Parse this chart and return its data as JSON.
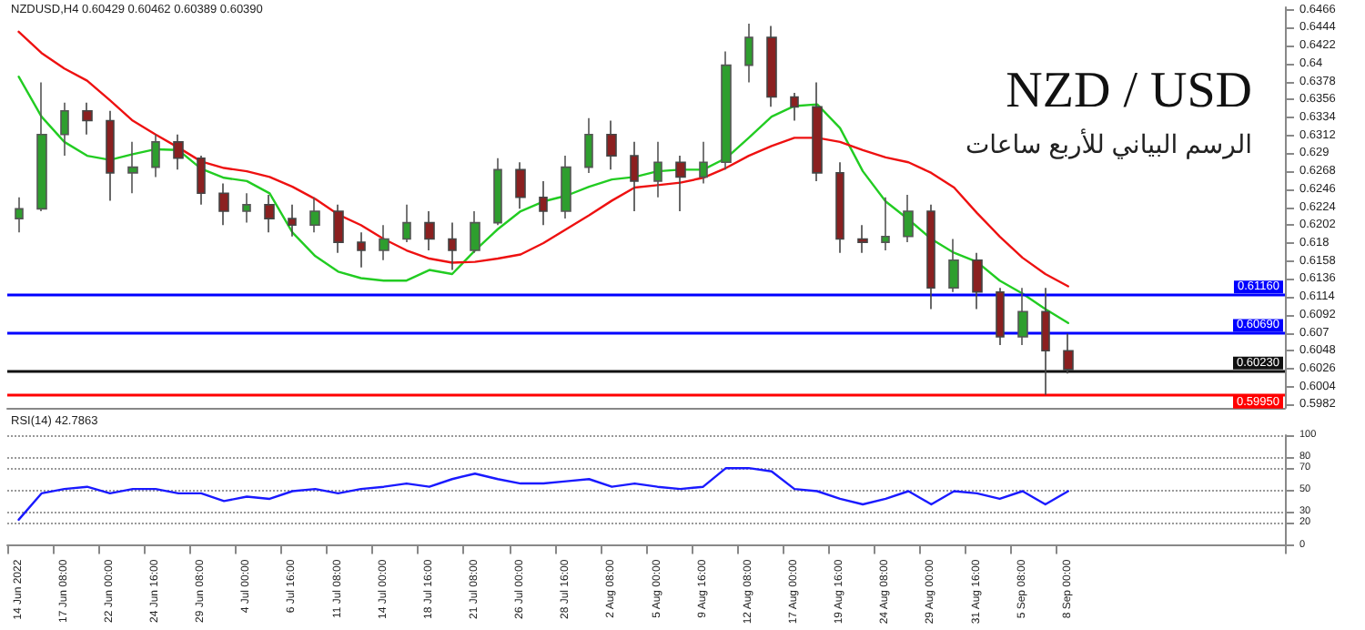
{
  "chart_data": [
    {
      "type": "candlestick",
      "title": "NZD / USD",
      "subtitle": "الرسم البياني للأربع ساعات",
      "annotations": [
        "NZDUSD,H4 0.60429 0.60462 0.60389 0.60390"
      ],
      "categories": [
        null,
        null,
        null,
        null,
        null,
        null,
        null,
        null,
        null,
        null,
        null,
        null,
        null,
        null,
        null,
        null,
        null,
        null,
        null,
        null,
        null,
        null,
        null,
        null,
        null,
        null,
        null,
        null,
        null,
        null,
        null,
        null,
        null,
        null,
        null,
        null,
        null,
        null,
        null,
        null,
        null,
        null,
        null,
        null,
        null,
        null,
        null,
        null,
        null,
        null,
        null,
        null,
        null,
        null,
        null,
        null
      ],
      "ohlc": [
        [
          0.621,
          0.6236,
          0.6193,
          0.6222
        ],
        [
          0.6222,
          0.6377,
          0.6219,
          0.6313
        ],
        [
          0.6313,
          0.6352,
          0.6287,
          0.6342
        ],
        [
          0.6342,
          0.6352,
          0.6313,
          0.633
        ],
        [
          0.633,
          0.6342,
          0.6232,
          0.6266
        ],
        [
          0.6266,
          0.6304,
          0.6241,
          0.6273
        ],
        [
          0.6273,
          0.6313,
          0.6261,
          0.6304
        ],
        [
          0.6304,
          0.6313,
          0.627,
          0.6284
        ],
        [
          0.6284,
          0.6287,
          0.6227,
          0.6241
        ],
        [
          0.6241,
          0.6253,
          0.6202,
          0.6219
        ],
        [
          0.6219,
          0.6241,
          0.6205,
          0.6227
        ],
        [
          0.6227,
          0.6239,
          0.6193,
          0.621
        ],
        [
          0.621,
          0.6227,
          0.6188,
          0.6202
        ],
        [
          0.6202,
          0.6236,
          0.6193,
          0.6219
        ],
        [
          0.6219,
          0.6227,
          0.6168,
          0.6181
        ],
        [
          0.6181,
          0.6193,
          0.615,
          0.6171
        ],
        [
          0.6171,
          0.6202,
          0.6159,
          0.6185
        ],
        [
          0.6185,
          0.6227,
          0.6181,
          0.6205
        ],
        [
          0.6205,
          0.6219,
          0.6171,
          0.6185
        ],
        [
          0.6185,
          0.6205,
          0.6147,
          0.6171
        ],
        [
          0.6171,
          0.6219,
          0.6168,
          0.6205
        ],
        [
          0.6205,
          0.6284,
          0.6202,
          0.627
        ],
        [
          0.627,
          0.6279,
          0.6222,
          0.6236
        ],
        [
          0.6236,
          0.6256,
          0.6202,
          0.6219
        ],
        [
          0.6219,
          0.6287,
          0.621,
          0.6273
        ],
        [
          0.6273,
          0.6333,
          0.6266,
          0.6313
        ],
        [
          0.6313,
          0.633,
          0.627,
          0.6287
        ],
        [
          0.6287,
          0.6304,
          0.6219,
          0.6256
        ],
        [
          0.6256,
          0.6304,
          0.6236,
          0.6279
        ],
        [
          0.6279,
          0.6287,
          0.6219,
          0.6261
        ],
        [
          0.6261,
          0.6304,
          0.6253,
          0.6279
        ],
        [
          0.6279,
          0.6415,
          0.627,
          0.6398
        ],
        [
          0.6398,
          0.6449,
          0.6377,
          0.6432
        ],
        [
          0.6432,
          0.6446,
          0.6347,
          0.6359
        ],
        [
          0.6359,
          0.6364,
          0.633,
          0.6347
        ],
        [
          0.6347,
          0.6377,
          0.6256,
          0.6266
        ],
        [
          0.6266,
          0.6279,
          0.6168,
          0.6185
        ],
        [
          0.6185,
          0.6202,
          0.6168,
          0.6181
        ],
        [
          0.6181,
          0.6236,
          0.6171,
          0.6188
        ],
        [
          0.6188,
          0.6239,
          0.6181,
          0.6219
        ],
        [
          0.6219,
          0.6227,
          0.6099,
          0.6125
        ],
        [
          0.6125,
          0.6185,
          0.612,
          0.6159
        ],
        [
          0.6159,
          0.6168,
          0.6099,
          0.612
        ],
        [
          0.612,
          0.6125,
          0.6055,
          0.6065
        ],
        [
          0.6065,
          0.6125,
          0.6055,
          0.6096
        ],
        [
          0.6096,
          0.6125,
          0.5994,
          0.6048
        ],
        [
          0.6048,
          0.6069,
          0.602,
          0.6025
        ],
        null,
        null,
        null,
        null,
        null,
        null,
        null,
        null,
        null
      ],
      "series": [
        {
          "type": "line",
          "color": "#22cc22",
          "values": [
            0.6384,
            0.6335,
            0.6304,
            0.6287,
            0.6282,
            0.6289,
            0.6295,
            0.6294,
            0.6271,
            0.626,
            0.6256,
            0.6241,
            0.6193,
            0.6164,
            0.6145,
            0.6137,
            0.6134,
            0.6134,
            0.6147,
            0.6142,
            0.6171,
            0.6197,
            0.6219,
            0.6231,
            0.6238,
            0.6249,
            0.6258,
            0.6261,
            0.6268,
            0.627,
            0.627,
            0.6284,
            0.6309,
            0.6335,
            0.6348,
            0.635,
            0.6321,
            0.6268,
            0.6231,
            0.6209,
            0.6185,
            0.6168,
            0.6157,
            0.6134,
            0.6118,
            0.6099,
            0.6082,
            null,
            null,
            null,
            null,
            null,
            null,
            null,
            null,
            null
          ]
        },
        {
          "type": "line",
          "color": "#ee1111",
          "values": [
            0.6439,
            0.6413,
            0.6394,
            0.6379,
            0.6355,
            0.633,
            0.6313,
            0.6297,
            0.628,
            0.6272,
            0.6268,
            0.6261,
            0.6249,
            0.6234,
            0.6215,
            0.6202,
            0.6185,
            0.6171,
            0.6161,
            0.6156,
            0.6157,
            0.6161,
            0.6166,
            0.618,
            0.6197,
            0.6214,
            0.6232,
            0.6248,
            0.6251,
            0.6254,
            0.626,
            0.6272,
            0.6287,
            0.6299,
            0.6309,
            0.6309,
            0.6304,
            0.6294,
            0.6285,
            0.6279,
            0.6266,
            0.6248,
            0.6217,
            0.6188,
            0.6162,
            0.6142,
            0.6127,
            null,
            null,
            null,
            null,
            null,
            null,
            null,
            null,
            null
          ]
        }
      ],
      "ylim": [
        0.5978,
        0.6469
      ],
      "yticks": [
        0.6466,
        0.6444,
        0.6422,
        0.64,
        0.6378,
        0.6356,
        0.6334,
        0.6312,
        0.629,
        0.6268,
        0.6246,
        0.6224,
        0.6202,
        0.618,
        0.6158,
        0.6136,
        0.6114,
        0.6092,
        0.607,
        0.6048,
        0.6026,
        0.6004,
        0.5982
      ],
      "ref_lines": [
        {
          "axis": "y",
          "value": 0.6116,
          "label": "0.61160",
          "color": "#0000ff"
        },
        {
          "axis": "y",
          "value": 0.6069,
          "label": "0.60690",
          "color": "#0000ff"
        },
        {
          "axis": "y",
          "value": 0.6023,
          "label": "0.60230",
          "color": "#111111"
        },
        {
          "axis": "y",
          "value": 0.5995,
          "label": "0.59950",
          "color": "#ff0000"
        }
      ],
      "tick_labels": "y",
      "grid": false
    },
    {
      "type": "line",
      "annotations": [
        "RSI(14) 42.7863"
      ],
      "categories": [
        "14 Jun 2022",
        null,
        "17 Jun 08:00",
        null,
        "22 Jun 00:00",
        null,
        "24 Jun 16:00",
        null,
        "29 Jun 08:00",
        null,
        "4 Jul 00:00",
        null,
        "6 Jul 16:00",
        null,
        "11 Jul 08:00",
        null,
        "14 Jul 00:00",
        null,
        "18 Jul 16:00",
        null,
        "21 Jul 08:00",
        null,
        "26 Jul 00:00",
        null,
        "28 Jul 16:00",
        null,
        "2 Aug 08:00",
        null,
        "5 Aug 00:00",
        null,
        "9 Aug 16:00",
        null,
        "12 Aug 08:00",
        null,
        "17 Aug 00:00",
        null,
        "19 Aug 16:00",
        null,
        "24 Aug 08:00",
        null,
        "29 Aug 00:00",
        null,
        "31 Aug 16:00",
        null,
        "5 Sep 08:00",
        null,
        "8 Sep 00:00",
        null,
        null,
        null,
        null,
        null,
        null,
        null,
        null,
        null
      ],
      "series": [
        {
          "color": "#1a1aff",
          "values": [
            23,
            47,
            51,
            53,
            47,
            51,
            51,
            47,
            47,
            40,
            44,
            42,
            49,
            51,
            47,
            51,
            53,
            56,
            53,
            60,
            65,
            60,
            56,
            56,
            58,
            60,
            53,
            56,
            53,
            51,
            53,
            70,
            70,
            67,
            51,
            49,
            42,
            37,
            42,
            49,
            37,
            49,
            47,
            42,
            49,
            37,
            49,
            null,
            null,
            null,
            null,
            null,
            null,
            null,
            null,
            null
          ]
        }
      ],
      "ylim": [
        0,
        100
      ],
      "yticks": [
        0,
        20,
        30,
        50,
        70,
        80,
        100
      ],
      "grid": "y",
      "marker": "none",
      "line_style": "solid"
    }
  ]
}
